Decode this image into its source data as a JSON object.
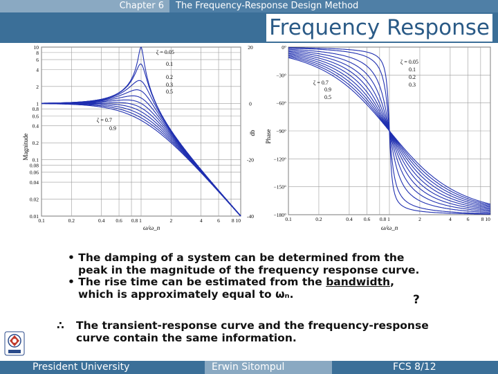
{
  "header": {
    "chapter": "Chapter 6",
    "chapter_title": "The Frequency-Response Design Method"
  },
  "slide_title": "Frequency Response",
  "mag_plot": {
    "y_ticks": [
      "10",
      "8",
      "6",
      "4",
      "2",
      "1",
      "0.8",
      "0.6",
      "0.4",
      "0.2",
      "0.1",
      "0.08",
      "0.06",
      "0.04",
      "0.02",
      "0.01"
    ],
    "db_ticks": [
      "20",
      "0",
      "-20",
      "-40"
    ],
    "x_ticks": [
      "0.1",
      "0.2",
      "0.4",
      "0.6",
      "0.8 1",
      "2",
      "4",
      "6",
      "8 10"
    ],
    "y_label": "Magnitude",
    "db_label": "db",
    "x_label": "ω/ω_n",
    "zeta_labels": [
      "ζ = 0.05",
      "0.1",
      "0.2",
      "0.3",
      "0.5"
    ],
    "zeta_labels_low": [
      "ζ = 0.7",
      "0.9"
    ]
  },
  "phase_plot": {
    "y_ticks": [
      "0°",
      "−30°",
      "−60°",
      "−90°",
      "−120°",
      "−150°",
      "−180°"
    ],
    "x_ticks": [
      "0.1",
      "0.2",
      "0.4",
      "0.6",
      "0.8 1",
      "2",
      "4",
      "6",
      "8 10"
    ],
    "y_label": "Phase",
    "x_label": "ω/ω_n",
    "zeta_labels": [
      "ζ = 0.05",
      "0.1",
      "0.2",
      "0.3"
    ],
    "zeta_labels_low": [
      "ζ = 0.7",
      "0.9",
      "0.5"
    ]
  },
  "bullets": [
    {
      "line1": "• The damping of a system can be determined from the",
      "line2": "peak in the magnitude of the frequency response curve."
    },
    {
      "line1_pre": "• The rise time can be estimated from the ",
      "line1_link": "bandwidth",
      "line1_post": ",",
      "line2": "which is approximately equal to ωₙ."
    }
  ],
  "question_mark": "?",
  "therefore_symbol": "∴",
  "conclusion": "The transient-response curve and the frequency-response curve contain the same information.",
  "footer": {
    "left": "President University",
    "center": "Erwin Sitompul",
    "right": "FCS 8/12"
  }
}
